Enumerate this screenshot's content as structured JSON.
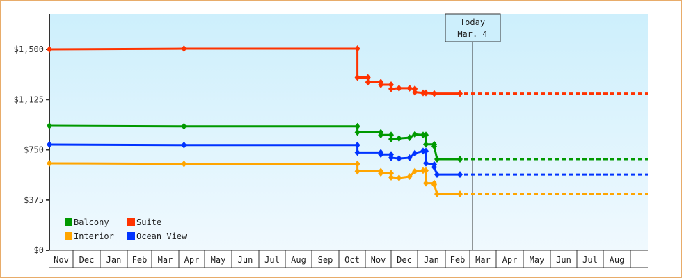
{
  "chart_data": {
    "type": "line",
    "title": "",
    "xlabel": "",
    "ylabel": "",
    "ylim": [
      0,
      1750
    ],
    "grid": false,
    "legend_position": "lower-left inside",
    "y_ticks": [
      {
        "value": 0,
        "label": "$0"
      },
      {
        "value": 375,
        "label": "$375"
      },
      {
        "value": 750,
        "label": "$750"
      },
      {
        "value": 1125,
        "label": "$1,125"
      },
      {
        "value": 1500,
        "label": "$1,500"
      }
    ],
    "x_ticks": [
      "Nov",
      "Dec",
      "Jan",
      "Feb",
      "Mar",
      "Apr",
      "May",
      "Jun",
      "Jul",
      "Aug",
      "Sep",
      "Oct",
      "Nov",
      "Dec",
      "Jan",
      "Feb",
      "Mar",
      "Apr",
      "May",
      "Jun",
      "Jul",
      "Aug"
    ],
    "today_marker": {
      "line1": "Today",
      "line2": "Mar. 4"
    },
    "series": [
      {
        "name": "Suite",
        "color": "#ff3300",
        "points": [
          [
            0,
            1500
          ],
          [
            5.2,
            1505
          ],
          [
            11.7,
            1505
          ],
          [
            11.7,
            1290
          ],
          [
            12.1,
            1290
          ],
          [
            12.1,
            1255
          ],
          [
            12.6,
            1255
          ],
          [
            12.6,
            1235
          ],
          [
            13.0,
            1235
          ],
          [
            13.0,
            1205
          ],
          [
            13.3,
            1210
          ],
          [
            13.7,
            1210
          ],
          [
            13.9,
            1205
          ],
          [
            13.9,
            1180
          ],
          [
            14.2,
            1175
          ],
          [
            14.3,
            1175
          ],
          [
            14.6,
            1170
          ],
          [
            15.6,
            1170
          ]
        ],
        "forecast": 1170
      },
      {
        "name": "Balcony",
        "color": "#009900",
        "points": [
          [
            0,
            929
          ],
          [
            5.2,
            925
          ],
          [
            11.7,
            925
          ],
          [
            11.7,
            880
          ],
          [
            12.6,
            880
          ],
          [
            12.6,
            860
          ],
          [
            13.0,
            860
          ],
          [
            13.0,
            830
          ],
          [
            13.3,
            835
          ],
          [
            13.7,
            840
          ],
          [
            13.9,
            865
          ],
          [
            14.2,
            860
          ],
          [
            14.3,
            860
          ],
          [
            14.3,
            790
          ],
          [
            14.6,
            790
          ],
          [
            14.6,
            775
          ],
          [
            14.7,
            680
          ],
          [
            15.6,
            680
          ]
        ],
        "forecast": 680
      },
      {
        "name": "Ocean View",
        "color": "#0033ff",
        "points": [
          [
            0,
            789
          ],
          [
            5.2,
            785
          ],
          [
            11.7,
            785
          ],
          [
            11.7,
            730
          ],
          [
            12.6,
            730
          ],
          [
            12.6,
            715
          ],
          [
            13.0,
            715
          ],
          [
            13.0,
            690
          ],
          [
            13.3,
            685
          ],
          [
            13.7,
            690
          ],
          [
            13.9,
            725
          ],
          [
            14.2,
            740
          ],
          [
            14.3,
            740
          ],
          [
            14.3,
            650
          ],
          [
            14.6,
            640
          ],
          [
            14.6,
            620
          ],
          [
            14.7,
            565
          ],
          [
            15.6,
            565
          ]
        ],
        "forecast": 565
      },
      {
        "name": "Interior",
        "color": "#ffa500",
        "points": [
          [
            0,
            649
          ],
          [
            5.2,
            645
          ],
          [
            11.7,
            645
          ],
          [
            11.7,
            590
          ],
          [
            12.6,
            590
          ],
          [
            12.6,
            575
          ],
          [
            13.0,
            575
          ],
          [
            13.0,
            545
          ],
          [
            13.3,
            540
          ],
          [
            13.7,
            550
          ],
          [
            13.9,
            590
          ],
          [
            14.2,
            595
          ],
          [
            14.3,
            595
          ],
          [
            14.3,
            500
          ],
          [
            14.6,
            500
          ],
          [
            14.6,
            490
          ],
          [
            14.7,
            420
          ],
          [
            15.6,
            420
          ]
        ],
        "forecast": 420
      }
    ],
    "legend": [
      {
        "name": "Balcony",
        "color": "#009900"
      },
      {
        "name": "Suite",
        "color": "#ff3300"
      },
      {
        "name": "Interior",
        "color": "#ffa500"
      },
      {
        "name": "Ocean View",
        "color": "#0033ff"
      }
    ]
  }
}
